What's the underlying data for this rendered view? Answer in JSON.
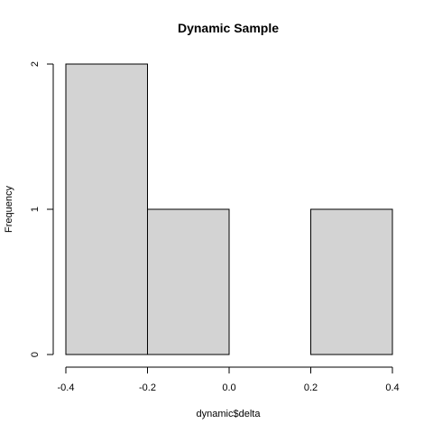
{
  "chart_data": {
    "type": "bar",
    "subtype": "histogram",
    "title": "Dynamic Sample",
    "xlabel": "dynamic$delta",
    "ylabel": "Frequency",
    "bins": [
      {
        "from": -0.4,
        "to": -0.2,
        "count": 2
      },
      {
        "from": -0.2,
        "to": 0.0,
        "count": 1
      },
      {
        "from": 0.0,
        "to": 0.2,
        "count": 0
      },
      {
        "from": 0.2,
        "to": 0.4,
        "count": 1
      }
    ],
    "xlim": [
      -0.4,
      0.4
    ],
    "ylim": [
      0,
      2
    ],
    "x_ticks": [
      -0.4,
      -0.2,
      0.0,
      0.2,
      0.4
    ],
    "x_tick_labels": [
      "-0.4",
      "-0.2",
      "0.0",
      "0.2",
      "0.4"
    ],
    "y_ticks": [
      0,
      1,
      2
    ],
    "y_tick_labels": [
      "0",
      "1",
      "2"
    ],
    "bar_fill": "#d3d3d3",
    "bar_stroke": "#000000",
    "grid": false,
    "legend": "none"
  }
}
